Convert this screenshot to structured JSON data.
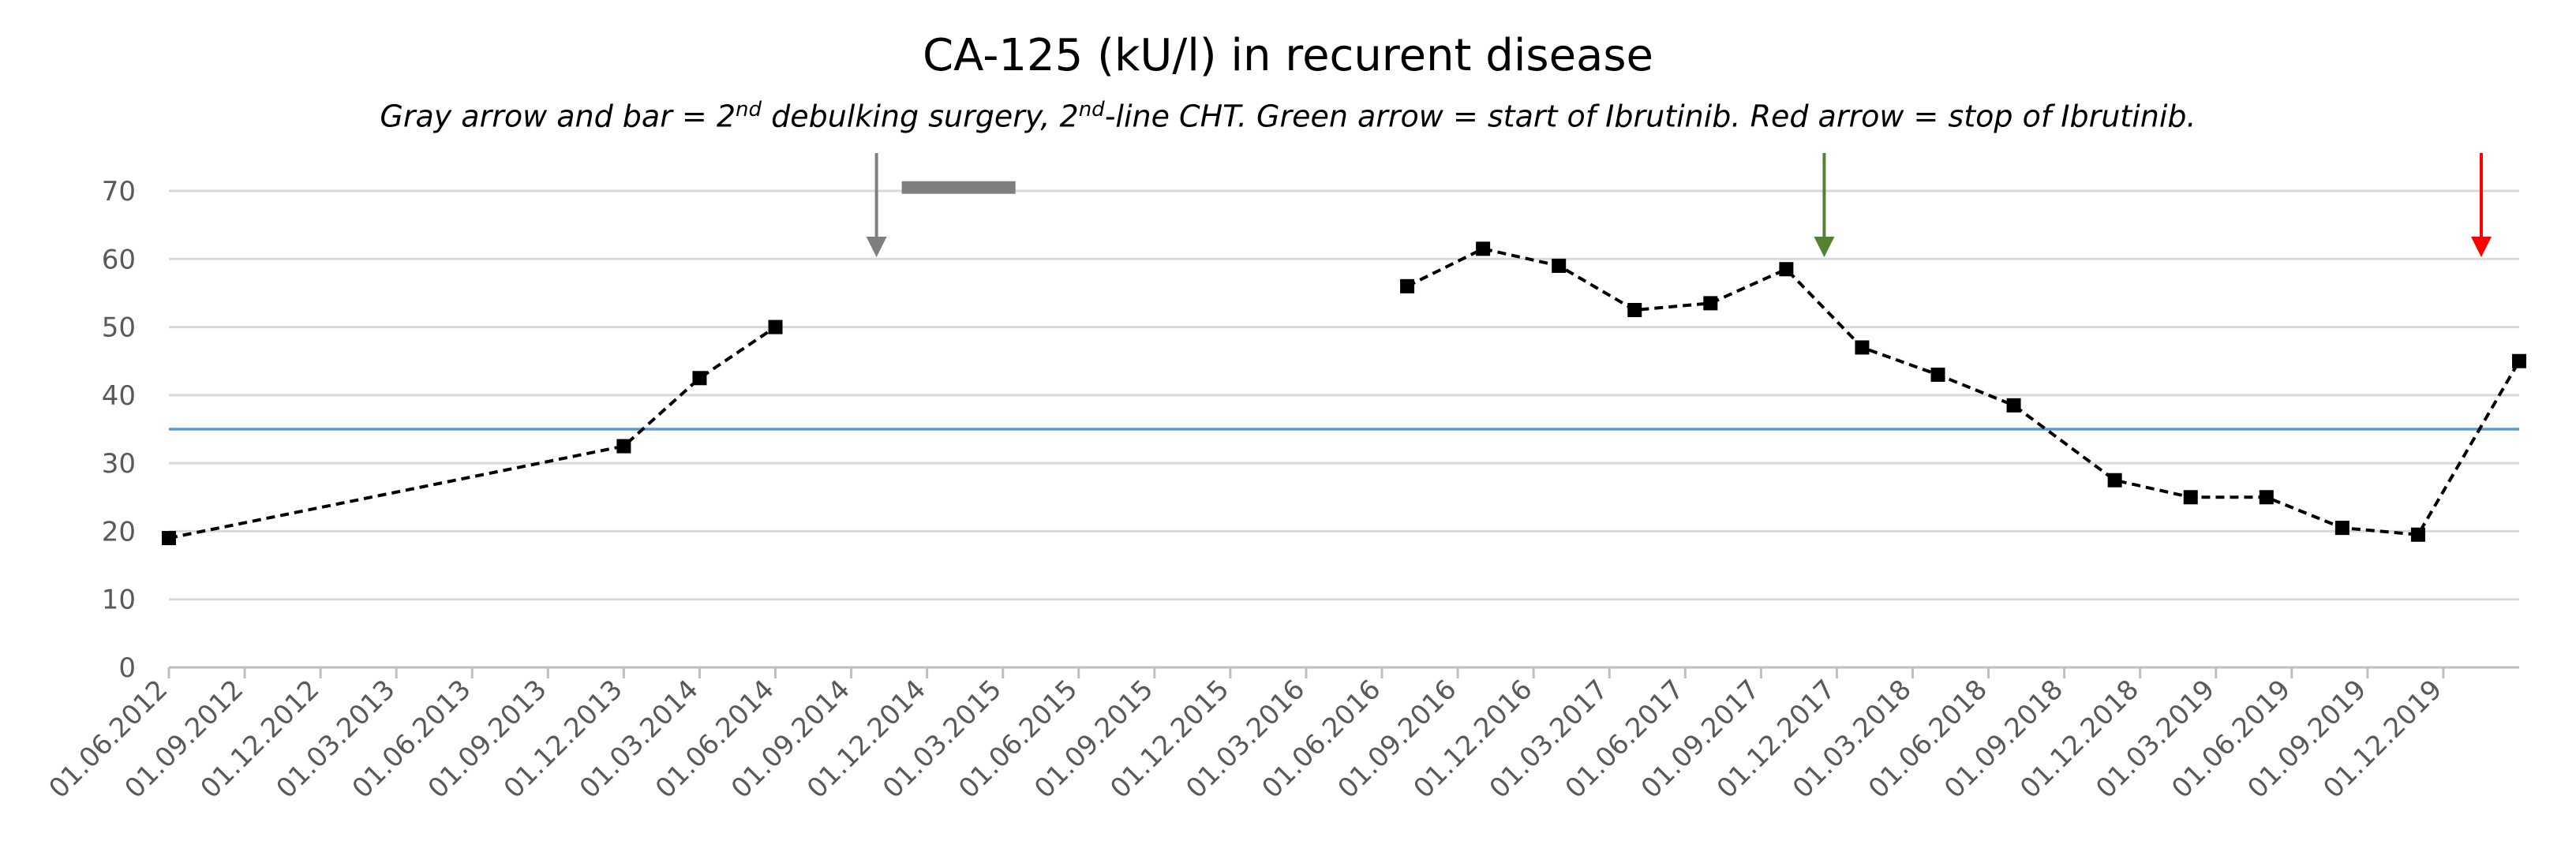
{
  "chart_data": {
    "type": "line",
    "title": "CA-125 (kU/l) in recurent disease",
    "subtitle_parts": {
      "p1": "Gray arrow and bar = 2",
      "sup1": "nd",
      "p2": " debulking surgery, 2",
      "sup2": "nd",
      "p3": "-line CHT. Green arrow = start of Ibrutinib. Red arrow = stop of Ibrutinib."
    },
    "xlabel": "",
    "ylabel": "",
    "ylim": [
      0,
      70
    ],
    "y_ticks": [
      0,
      10,
      20,
      30,
      40,
      50,
      60,
      70
    ],
    "x_range_months": [
      0,
      93
    ],
    "x_tick_labels": [
      "01.06.2012",
      "01.09.2012",
      "01.12.2012",
      "01.03.2013",
      "01.06.2013",
      "01.09.2013",
      "01.12.2013",
      "01.03.2014",
      "01.06.2014",
      "01.09.2014",
      "01.12.2014",
      "01.03.2015",
      "01.06.2015",
      "01.09.2015",
      "01.12.2015",
      "01.03.2016",
      "01.06.2016",
      "01.09.2016",
      "01.12.2016",
      "01.03.2017",
      "01.06.2017",
      "01.09.2017",
      "01.12.2017",
      "01.03.2018",
      "01.06.2018",
      "01.09.2018",
      "01.12.2018",
      "01.03.2019",
      "01.06.2019",
      "01.09.2019",
      "01.12.2019"
    ],
    "reference_line": {
      "value": 35,
      "color": "#5b9bd5"
    },
    "series": [
      {
        "name": "CA-125",
        "segments": [
          {
            "x": [
              0,
              18,
              21,
              24
            ],
            "y": [
              19,
              32.5,
              42.5,
              50
            ]
          },
          {
            "x": [
              49,
              52,
              55,
              58,
              61,
              64,
              67,
              70,
              73,
              77,
              80,
              83,
              86,
              89,
              93
            ],
            "y": [
              56,
              61.5,
              59,
              52.5,
              53.5,
              58.5,
              47,
              43,
              38.5,
              27.5,
              25,
              25,
              20.5,
              19.5,
              45
            ]
          }
        ]
      }
    ],
    "annotations": {
      "gray_arrow": {
        "x": 28,
        "color": "#7f7f7f"
      },
      "gray_bar": {
        "x_start": 29,
        "x_end": 33.5,
        "y": 70.5,
        "color": "#7f7f7f"
      },
      "green_arrow": {
        "x": 65.5,
        "color": "#548235"
      },
      "red_arrow": {
        "x": 91.5,
        "color": "#ff0000"
      }
    },
    "grid": true,
    "colors": {
      "axis": "#bfbfbf",
      "grid": "#d9d9d9",
      "text": "#595959",
      "series": "#000000"
    }
  }
}
